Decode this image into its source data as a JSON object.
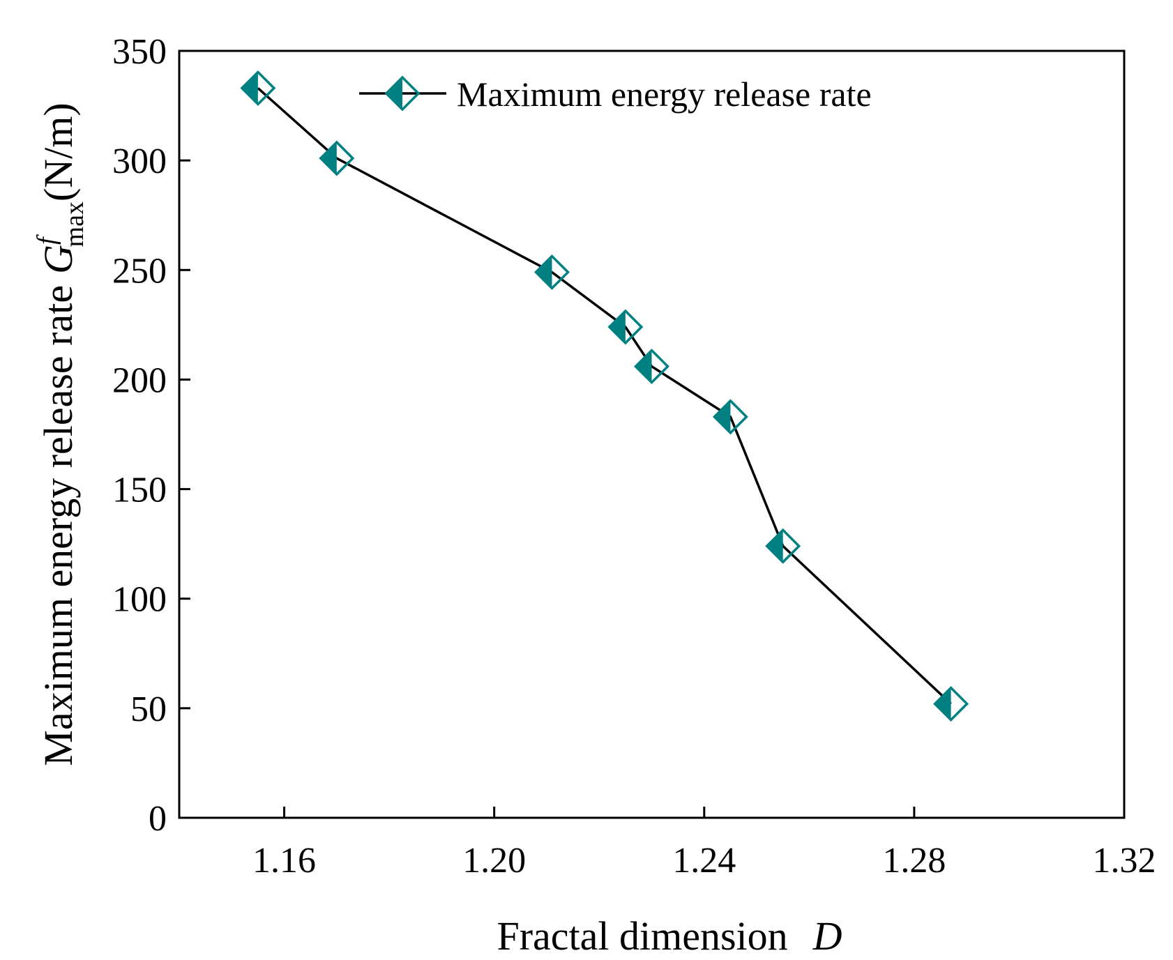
{
  "chart_data": {
    "type": "line",
    "title": "",
    "xlabel": "Fractal dimension",
    "xlabel_symbol": "D",
    "ylabel": "Maximum energy release rate",
    "ylabel_symbol": "G",
    "ylabel_superscript": "f",
    "ylabel_subscript": "max",
    "ylabel_unit": "(N/m)",
    "xlim": [
      1.14,
      1.32
    ],
    "ylim": [
      0,
      350
    ],
    "xticks": [
      "1.16",
      "1.20",
      "1.24",
      "1.28",
      "1.32"
    ],
    "yticks": [
      "0",
      "50",
      "100",
      "150",
      "200",
      "250",
      "300",
      "350"
    ],
    "grid": false,
    "legend_position": "top-right",
    "series": [
      {
        "name": "Maximum energy release rate",
        "color": "#008080",
        "marker": "half-filled-diamond",
        "x": [
          1.155,
          1.17,
          1.211,
          1.225,
          1.23,
          1.245,
          1.255,
          1.287
        ],
        "y": [
          333,
          301,
          249,
          224,
          206,
          183,
          124,
          52
        ]
      }
    ]
  }
}
